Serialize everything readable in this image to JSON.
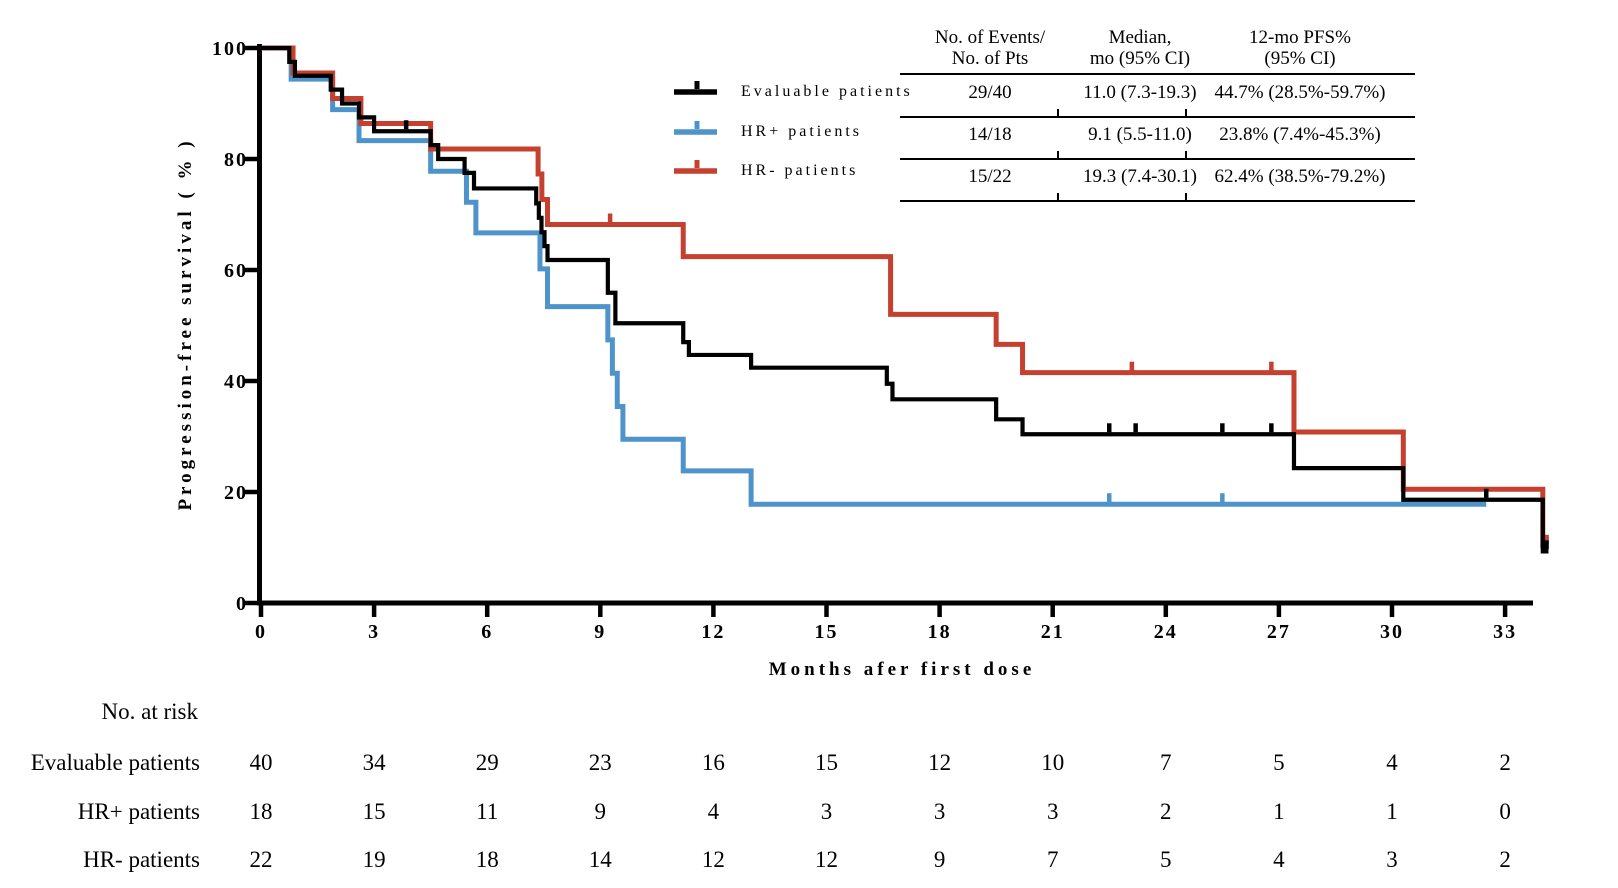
{
  "figure": {
    "x_axis_title": "Months afer first dose",
    "y_axis_title": "Progression-free survival ( % )"
  },
  "chart_data": {
    "type": "line",
    "subtype": "kaplan-meier-step-curves",
    "title": "",
    "xlabel": "Months afer first dose",
    "ylabel": "Progression-free survival ( % )",
    "xlim": [
      0,
      34.3
    ],
    "ylim": [
      0,
      100
    ],
    "grid": "off",
    "legend_position": "top-left-of-stats-table",
    "x_ticks": [
      "0",
      "3",
      "6",
      "9",
      "12",
      "15",
      "18",
      "21",
      "24",
      "27",
      "30",
      "33"
    ],
    "y_ticks": [
      "0",
      "20",
      "40",
      "60",
      "80",
      "100"
    ],
    "series": [
      {
        "name": "Evaluable patients",
        "color": "#000000",
        "end_month": 34.15,
        "steps": [
          [
            0,
            100
          ],
          [
            0.75,
            97.5
          ],
          [
            0.9,
            95
          ],
          [
            1.85,
            92.5
          ],
          [
            2.15,
            90
          ],
          [
            2.6,
            87.5
          ],
          [
            3.0,
            85
          ],
          [
            4.5,
            82.5
          ],
          [
            4.7,
            80
          ],
          [
            5.4,
            77.5
          ],
          [
            5.65,
            74.7
          ],
          [
            7.3,
            72
          ],
          [
            7.37,
            69.4
          ],
          [
            7.44,
            66.8
          ],
          [
            7.52,
            64.3
          ],
          [
            7.6,
            61.8
          ],
          [
            9.2,
            55.9
          ],
          [
            9.4,
            50.4
          ],
          [
            11.2,
            47
          ],
          [
            11.35,
            44.7
          ],
          [
            13.0,
            42.4
          ],
          [
            16.6,
            39.5
          ],
          [
            16.75,
            36.7
          ],
          [
            19.5,
            33.1
          ],
          [
            20.2,
            30.4
          ],
          [
            27.4,
            24.3
          ],
          [
            30.3,
            18.6
          ],
          [
            34.0,
            9.3
          ]
        ],
        "censor_ticks": [
          [
            3.85,
            85
          ],
          [
            22.5,
            30.4
          ],
          [
            23.2,
            30.4
          ],
          [
            25.5,
            30.4
          ],
          [
            26.8,
            30.4
          ],
          [
            32.5,
            18.6
          ],
          [
            34.1,
            9.3
          ]
        ]
      },
      {
        "name": "HR+ patients",
        "color": "#4e93ca",
        "end_month": 32.5,
        "steps": [
          [
            0,
            100
          ],
          [
            0.8,
            94.4
          ],
          [
            1.9,
            88.9
          ],
          [
            2.6,
            83.3
          ],
          [
            4.5,
            77.8
          ],
          [
            5.45,
            72.2
          ],
          [
            5.7,
            66.7
          ],
          [
            7.4,
            60.2
          ],
          [
            7.6,
            53.4
          ],
          [
            9.2,
            47.4
          ],
          [
            9.32,
            41.4
          ],
          [
            9.45,
            35.4
          ],
          [
            9.6,
            29.5
          ],
          [
            11.2,
            23.8
          ],
          [
            13.0,
            17.8
          ]
        ],
        "censor_ticks": [
          [
            22.5,
            17.8
          ],
          [
            25.5,
            17.8
          ]
        ]
      },
      {
        "name": "HR- patients",
        "color": "#c5402f",
        "end_month": 34.15,
        "steps": [
          [
            0,
            100
          ],
          [
            0.85,
            95.5
          ],
          [
            1.9,
            90.9
          ],
          [
            2.65,
            86.4
          ],
          [
            4.5,
            81.8
          ],
          [
            7.35,
            77.3
          ],
          [
            7.45,
            72.7
          ],
          [
            7.6,
            68.2
          ],
          [
            11.2,
            62.4
          ],
          [
            16.7,
            52.0
          ],
          [
            19.5,
            46.6
          ],
          [
            20.2,
            41.5
          ],
          [
            27.4,
            30.8
          ],
          [
            30.3,
            20.5
          ],
          [
            34.0,
            10.3
          ]
        ],
        "censor_ticks": [
          [
            9.26,
            68.2
          ],
          [
            23.1,
            41.5
          ],
          [
            26.8,
            41.5
          ],
          [
            34.1,
            10.3
          ]
        ]
      }
    ]
  },
  "stats_table": {
    "col_headers": [
      {
        "line1": "No. of Events/",
        "line2": "No. of Pts"
      },
      {
        "line1": "Median,",
        "line2": "mo (95% CI)"
      },
      {
        "line1": "12-mo PFS%",
        "line2": "(95% CI)"
      }
    ],
    "rows": [
      {
        "events": "29/40",
        "median": "11.0 (7.3-19.3)",
        "pfs": "44.7% (28.5%-59.7%)"
      },
      {
        "events": "14/18",
        "median": "9.1 (5.5-11.0)",
        "pfs": "23.8% (7.4%-45.3%)"
      },
      {
        "events": "15/22",
        "median": "19.3 (7.4-30.1)",
        "pfs": "62.4% (38.5%-79.2%)"
      }
    ]
  },
  "at_risk": {
    "title": "No. at risk",
    "months": [
      0,
      3,
      6,
      9,
      12,
      15,
      18,
      21,
      24,
      27,
      30,
      33
    ],
    "rows": [
      {
        "label": "Evaluable patients",
        "values": [
          "40",
          "34",
          "29",
          "23",
          "16",
          "15",
          "12",
          "10",
          "7",
          "5",
          "4",
          "2"
        ]
      },
      {
        "label": "HR+ patients",
        "values": [
          "18",
          "15",
          "11",
          "9",
          "4",
          "3",
          "3",
          "3",
          "2",
          "1",
          "1",
          "0"
        ]
      },
      {
        "label": "HR- patients",
        "values": [
          "22",
          "19",
          "18",
          "14",
          "12",
          "12",
          "9",
          "7",
          "5",
          "4",
          "3",
          "2"
        ]
      }
    ]
  }
}
